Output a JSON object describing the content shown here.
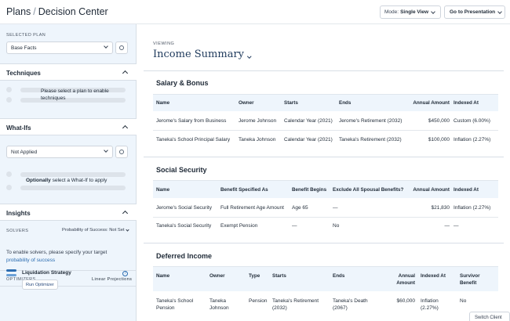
{
  "header": {
    "breadcrumb_root": "Plans",
    "breadcrumb_sep": "/",
    "breadcrumb_current": "Decision Center",
    "mode_label": "Mode:",
    "mode_value": "Single View",
    "goto_label": "Go to Presentation"
  },
  "sidebar": {
    "selected_plan_label": "SELECTED PLAN",
    "selected_plan_value": "Base Facts",
    "techniques": {
      "title": "Techniques",
      "message": "Please select a plan to enable techniques"
    },
    "whatifs": {
      "title": "What-Ifs",
      "select_value": "Not Applied",
      "message_bold": "Optionally",
      "message_rest": " select a What-If to apply"
    },
    "insights": {
      "title": "Insights",
      "solvers_label": "SOLVERS",
      "solvers_select": "Probability of Success: Not Set",
      "solvers_text": "To enable solvers, please specify your target",
      "solvers_link": "probability of success",
      "optimizers_label": "OPTIMIZERS",
      "optimizers_right": "Linear Projections",
      "strategy_title": "Liquidation Strategy",
      "help_glyph": "?",
      "run_button": "Run Optimizer"
    }
  },
  "main": {
    "viewing_label": "VIEWING",
    "title": "Income Summary",
    "salary": {
      "title": "Salary & Bonus",
      "columns": [
        "Name",
        "Owner",
        "Starts",
        "Ends",
        "Annual Amount",
        "Indexed At"
      ],
      "rows": [
        [
          "Jerome's Salary from Business",
          "Jerome Johnson",
          "Calendar Year (2021)",
          "Jerome's Retirement (2032)",
          "$450,000",
          "Custom (6.00%)"
        ],
        [
          "Taneka's School Principal Salary",
          "Taneka Johnson",
          "Calendar Year (2021)",
          "Taneka's Retirement (2032)",
          "$100,000",
          "Inflation (2.27%)"
        ]
      ]
    },
    "social": {
      "title": "Social Security",
      "columns": [
        "Name",
        "Benefit Specified As",
        "Benefit Begins",
        "Exclude All Spousal Benefits?",
        "Annual Amount",
        "Indexed At"
      ],
      "rows": [
        [
          "Jerome's Social Security",
          "Full Retirement Age Amount",
          "Age 65",
          "—",
          "$21,830",
          "Inflation (2.27%)"
        ],
        [
          "Taneka's Social Security",
          "Exempt Pension",
          "—",
          "No",
          "—",
          "—"
        ]
      ]
    },
    "deferred": {
      "title": "Deferred Income",
      "columns": [
        "Name",
        "Owner",
        "Type",
        "Starts",
        "Ends",
        "Annual Amount",
        "Indexed At",
        "Survivor Benefit"
      ],
      "row": {
        "name_1": "Taneka's School",
        "name_2": "Pension",
        "owner_1": "Taneka",
        "owner_2": "Johnson",
        "type": "Pension",
        "starts_1": "Taneka's Retirement",
        "starts_2": "(2032)",
        "ends_1": "Taneka's Death",
        "ends_2": "(2067)",
        "amount": "$60,000",
        "indexed_1": "Inflation",
        "indexed_2": "(2.27%)",
        "survivor": "No"
      }
    }
  },
  "switch_client": "Switch Client"
}
